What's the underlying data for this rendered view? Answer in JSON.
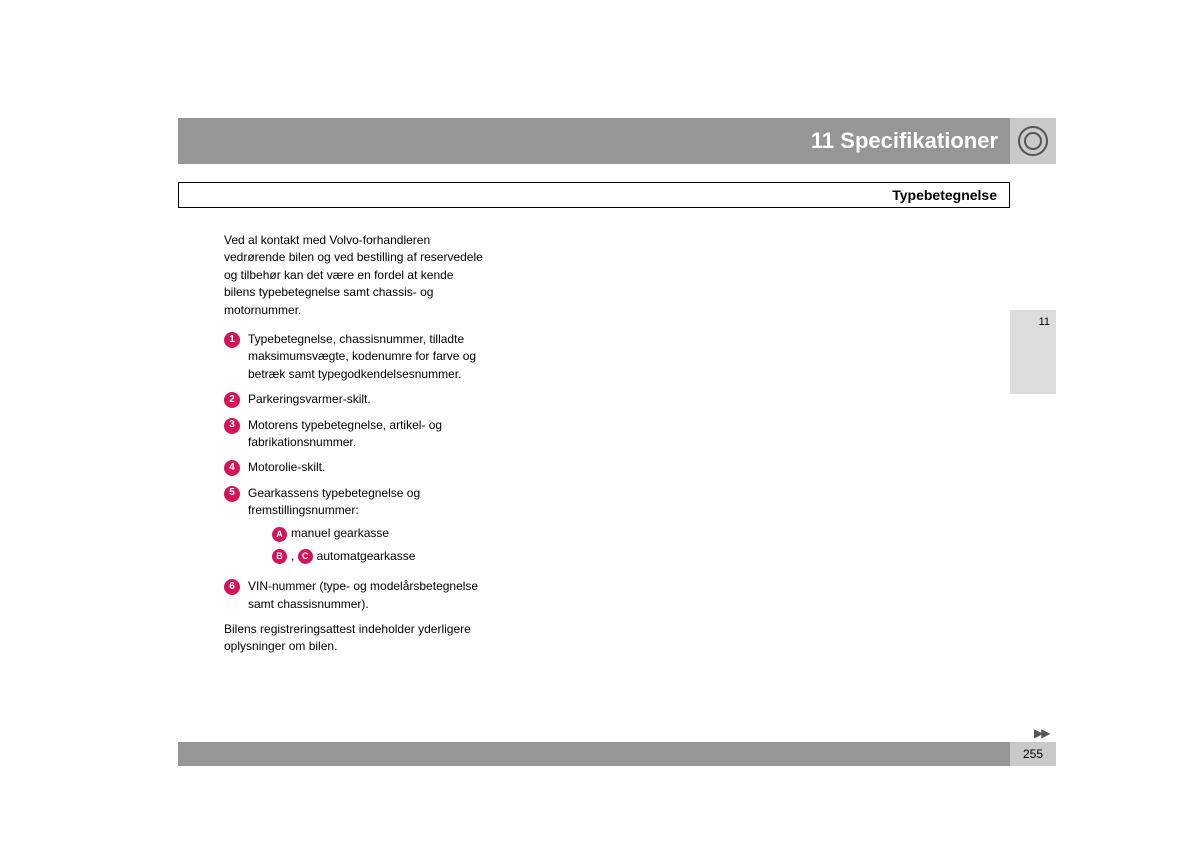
{
  "header": {
    "chapter_number": "11",
    "chapter_title": "Specifikationer"
  },
  "subheader": "Typebetegnelse",
  "intro": "Ved al kontakt med Volvo-forhandleren vedrørende bilen og ved bestilling af reservedele og tilbehør kan det være en fordel at kende bilens typebetegnelse samt chassis- og motornummer.",
  "items": [
    {
      "n": "1",
      "text": "Typebetegnelse, chassisnummer, tilladte maksimumsvægte, kodenumre for farve og betræk samt typegodkendelsesnummer."
    },
    {
      "n": "2",
      "text": "Parkeringsvarmer-skilt."
    },
    {
      "n": "3",
      "text": "Motorens typebetegnelse, artikel- og fabrikationsnummer."
    },
    {
      "n": "4",
      "text": "Motorolie-skilt."
    },
    {
      "n": "5",
      "text": "Gearkassens typebetegnelse og fremstillingsnummer:"
    },
    {
      "n": "6",
      "text": "VIN-nummer (type- og modelårsbetegnelse samt chassisnummer)."
    }
  ],
  "subitems": {
    "a_label": "A",
    "a_text": "manuel gearkasse",
    "b_label": "B",
    "c_label": "C",
    "bc_text": "automatgearkasse"
  },
  "outro": "Bilens registreringsattest indeholder yderligere oplysninger om bilen.",
  "side_tab": "11",
  "page_number": "255",
  "continue": "▶▶",
  "colors": {
    "header_bg": "#969696",
    "icon_bg": "#c9c9c9",
    "bullet_bg": "#d4145a",
    "tab_bg": "#dcdcdc"
  }
}
